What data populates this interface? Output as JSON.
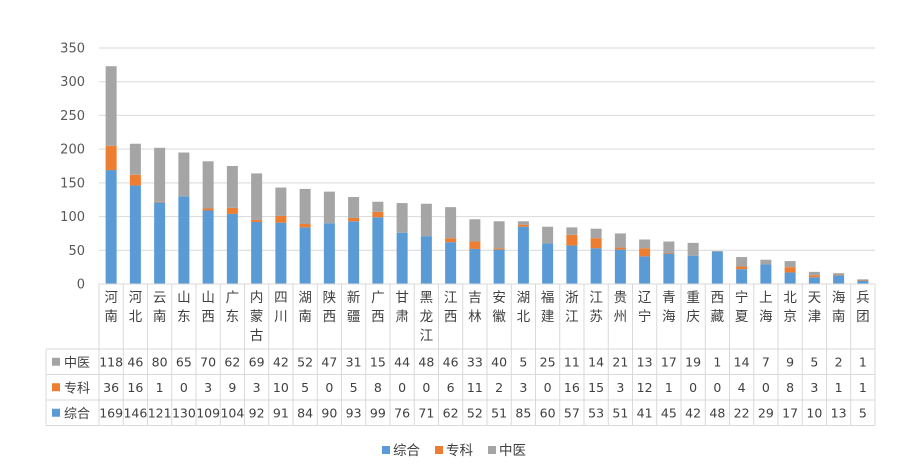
{
  "chart_data": {
    "type": "bar",
    "stacked": true,
    "categories": [
      "河南",
      "河北",
      "云南",
      "山东",
      "山西",
      "广东",
      "内蒙古",
      "四川",
      "湖南",
      "陕西",
      "新疆",
      "广西",
      "甘肃",
      "黑龙江",
      "江西",
      "吉林",
      "安徽",
      "湖北",
      "福建",
      "浙江",
      "江苏",
      "贵州",
      "辽宁",
      "青海",
      "重庆",
      "西藏",
      "宁夏",
      "上海",
      "北京",
      "天津",
      "海南",
      "兵团"
    ],
    "series": [
      {
        "name": "综合",
        "color": "#5b9bd5",
        "values": [
          169,
          146,
          121,
          130,
          109,
          104,
          92,
          91,
          84,
          90,
          93,
          99,
          76,
          71,
          62,
          52,
          51,
          85,
          60,
          57,
          53,
          51,
          41,
          45,
          42,
          48,
          22,
          29,
          17,
          10,
          13,
          5
        ]
      },
      {
        "name": "专科",
        "color": "#ed7d31",
        "values": [
          36,
          16,
          1,
          0,
          3,
          9,
          3,
          10,
          5,
          0,
          5,
          8,
          0,
          0,
          6,
          11,
          2,
          3,
          0,
          16,
          15,
          3,
          12,
          1,
          0,
          0,
          4,
          0,
          8,
          3,
          1,
          1
        ]
      },
      {
        "name": "中医",
        "color": "#a5a5a5",
        "values": [
          118,
          46,
          80,
          65,
          70,
          62,
          69,
          42,
          52,
          47,
          31,
          15,
          44,
          48,
          46,
          33,
          40,
          5,
          25,
          11,
          14,
          21,
          13,
          17,
          19,
          1,
          14,
          7,
          9,
          5,
          2,
          1
        ]
      }
    ],
    "ylim": [
      0,
      350
    ],
    "yticks": [
      0,
      50,
      100,
      150,
      200,
      250,
      300,
      350
    ],
    "title": "",
    "xlabel": "",
    "ylabel": "",
    "grid": true,
    "legend": "bottom",
    "data_table": true
  }
}
